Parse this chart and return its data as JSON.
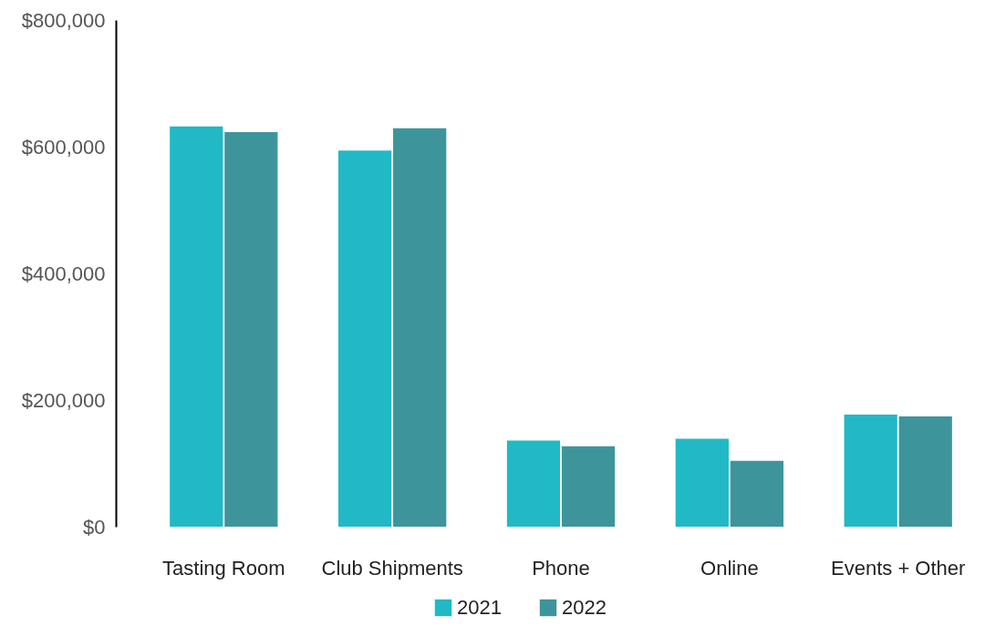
{
  "chart_data": {
    "type": "bar",
    "categories": [
      "Tasting Room",
      "Club Shipments",
      "Phone",
      "Online",
      "Events + Other"
    ],
    "series": [
      {
        "name": "2021",
        "color": "#20b9c5",
        "values": [
          632000,
          594000,
          136000,
          139000,
          177000
        ]
      },
      {
        "name": "2022",
        "color": "#3d959b",
        "values": [
          623000,
          629000,
          127000,
          104000,
          174000
        ]
      }
    ],
    "ylim": [
      0,
      800000
    ],
    "yticks": [
      {
        "value": 0,
        "label": "$0"
      },
      {
        "value": 200000,
        "label": "$200,000"
      },
      {
        "value": 400000,
        "label": "$400,000"
      },
      {
        "value": 600000,
        "label": "$600,000"
      },
      {
        "value": 800000,
        "label": "$800,000"
      }
    ],
    "legend": "bottom"
  }
}
